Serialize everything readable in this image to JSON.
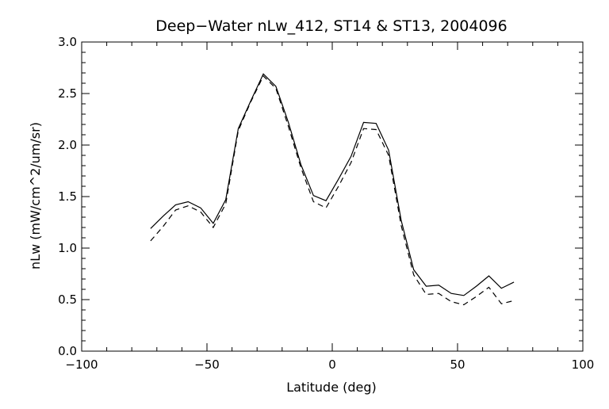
{
  "chart_data": {
    "type": "line",
    "title": "Deep−Water nLw_412, ST14 & ST13, 2004096",
    "xlabel": "Latitude (deg)",
    "ylabel": "nLw (mW/cm^2/um/sr)",
    "xlim": [
      -100,
      100
    ],
    "ylim": [
      0.0,
      3.0
    ],
    "x_ticks": [
      -100,
      -50,
      0,
      50,
      100
    ],
    "x_tick_labels": [
      "−100",
      "−50",
      "0",
      "50",
      "100"
    ],
    "y_ticks": [
      0.0,
      0.5,
      1.0,
      1.5,
      2.0,
      2.5,
      3.0
    ],
    "y_tick_labels": [
      "0.0",
      "0.5",
      "1.0",
      "1.5",
      "2.0",
      "2.5",
      "3.0"
    ],
    "grid": false,
    "legend": "none",
    "series": [
      {
        "style": "solid",
        "color": "#000000",
        "x": [
          -72.5,
          -67.5,
          -62.5,
          -57.5,
          -52.5,
          -47.5,
          -42.5,
          -37.5,
          -32.5,
          -27.5,
          -22.5,
          -17.5,
          -12.5,
          -7.5,
          -2.5,
          2.5,
          7.5,
          12.5,
          17.5,
          22.5,
          27.5,
          32.5,
          37.5,
          42.5,
          47.5,
          52.5,
          57.5,
          62.5,
          67.5,
          72.5
        ],
        "values": [
          1.19,
          1.31,
          1.42,
          1.45,
          1.39,
          1.24,
          1.47,
          2.16,
          2.43,
          2.69,
          2.57,
          2.22,
          1.81,
          1.51,
          1.46,
          1.67,
          1.89,
          2.22,
          2.21,
          1.95,
          1.27,
          0.79,
          0.63,
          0.64,
          0.56,
          0.54,
          0.63,
          0.73,
          0.61,
          0.67
        ]
      },
      {
        "style": "dashed",
        "color": "#000000",
        "x": [
          -72.5,
          -67.5,
          -62.5,
          -57.5,
          -52.5,
          -47.5,
          -42.5,
          -37.5,
          -32.5,
          -27.5,
          -22.5,
          -17.5,
          -12.5,
          -7.5,
          -2.5,
          2.5,
          7.5,
          12.5,
          17.5,
          22.5,
          27.5,
          32.5,
          37.5,
          42.5,
          47.5,
          52.5,
          57.5,
          62.5,
          67.5,
          72.5
        ],
        "values": [
          1.07,
          1.21,
          1.37,
          1.41,
          1.35,
          1.2,
          1.43,
          2.14,
          2.42,
          2.67,
          2.55,
          2.18,
          1.78,
          1.45,
          1.39,
          1.6,
          1.83,
          2.16,
          2.15,
          1.9,
          1.22,
          0.74,
          0.55,
          0.56,
          0.48,
          0.45,
          0.53,
          0.62,
          0.46,
          0.49
        ]
      }
    ]
  }
}
